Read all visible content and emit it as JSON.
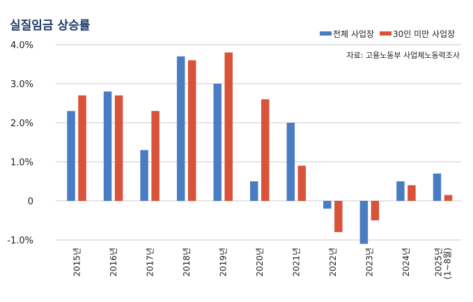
{
  "chart_data": {
    "type": "bar",
    "title": "실질임금 상승률",
    "source": "자료: 고용노동부 사업체노동력조사",
    "categories": [
      "2015년",
      "2016년",
      "2017년",
      "2018년",
      "2019년",
      "2020년",
      "2021년",
      "2022년",
      "2023년",
      "2024년",
      "2025년\n(1~8월)"
    ],
    "series": [
      {
        "name": "전체 사업장",
        "color": "#4a7cc4",
        "values": [
          2.3,
          2.8,
          1.3,
          3.7,
          3.0,
          0.5,
          2.0,
          -0.2,
          -1.1,
          0.5,
          0.7
        ]
      },
      {
        "name": "30인 미만 사업장",
        "color": "#d9523a",
        "values": [
          2.7,
          2.7,
          2.3,
          3.6,
          3.8,
          2.6,
          0.9,
          -0.8,
          -0.5,
          0.4,
          0.15
        ]
      }
    ],
    "yticks": [
      -1,
      0,
      1,
      2,
      3,
      4
    ],
    "ytick_labels": [
      "-1.0%",
      "0",
      "1.0%",
      "2.0%",
      "3.0%",
      "4.0%"
    ],
    "ylim": [
      -1,
      4
    ],
    "grid": true,
    "legend": "top-right",
    "title_color": "#1f3a66"
  }
}
